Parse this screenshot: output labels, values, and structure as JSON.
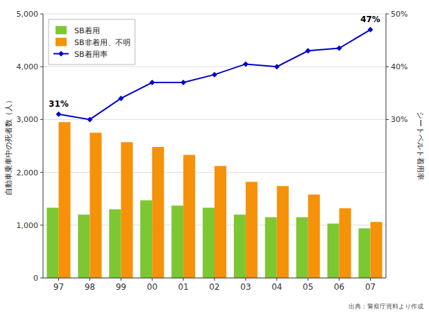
{
  "chart_data": {
    "type": "bar",
    "categories": [
      "97",
      "98",
      "99",
      "00",
      "01",
      "02",
      "03",
      "04",
      "05",
      "06",
      "07"
    ],
    "series": [
      {
        "name": "SB着用",
        "color": "#7dc832",
        "values": [
          1330,
          1200,
          1300,
          1470,
          1370,
          1330,
          1200,
          1150,
          1150,
          1030,
          940
        ]
      },
      {
        "name": "SB非着用、不明",
        "color": "#f5920a",
        "values": [
          2950,
          2750,
          2570,
          2480,
          2330,
          2120,
          1820,
          1740,
          1580,
          1320,
          1060
        ]
      },
      {
        "name": "SB着用率",
        "type": "line",
        "axis": "y2",
        "color": "#0000cc",
        "marker": "diamond",
        "values": [
          31,
          30,
          34,
          37,
          37,
          38.5,
          40.5,
          40,
          43,
          43.5,
          47
        ]
      }
    ],
    "ylabel": "自動車乗車中の死者数（人）",
    "y2label": "シートベルト着用率",
    "ylim": [
      0,
      5000
    ],
    "yticks": [
      0,
      {
        "value": 1000,
        "label": "1,000"
      },
      {
        "value": 2000,
        "label": "2,000"
      },
      {
        "value": 3000,
        "label": "3,000"
      },
      {
        "value": 4000,
        "label": "4,000"
      },
      {
        "value": 5000,
        "label": "5,000"
      }
    ],
    "y2lim": [
      0,
      50
    ],
    "y2ticks": [
      {
        "value": 30,
        "label": "30%"
      },
      {
        "value": 40,
        "label": "40%"
      },
      {
        "value": 50,
        "label": "50%"
      }
    ],
    "annotations": [
      "31%",
      "47%"
    ],
    "source": "出典：警察庁資料より作成",
    "grid": true,
    "legend": "top-left"
  }
}
